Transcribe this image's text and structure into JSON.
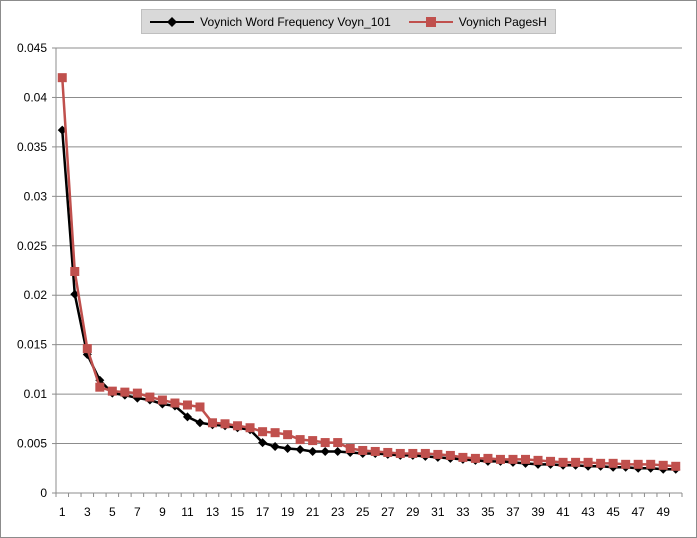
{
  "chart_data": {
    "type": "line",
    "x": [
      1,
      2,
      3,
      4,
      5,
      6,
      7,
      8,
      9,
      10,
      11,
      12,
      13,
      14,
      15,
      16,
      17,
      18,
      19,
      20,
      21,
      22,
      23,
      24,
      25,
      26,
      27,
      28,
      29,
      30,
      31,
      32,
      33,
      34,
      35,
      36,
      37,
      38,
      39,
      40,
      41,
      42,
      43,
      44,
      45,
      46,
      47,
      48,
      49,
      50
    ],
    "x_tick_labels": [
      "1",
      "3",
      "5",
      "7",
      "9",
      "11",
      "13",
      "15",
      "17",
      "19",
      "21",
      "23",
      "25",
      "27",
      "29",
      "31",
      "33",
      "35",
      "37",
      "39",
      "41",
      "43",
      "45",
      "47",
      "49"
    ],
    "y_tick_labels": [
      "0",
      "0.005",
      "0.01",
      "0.015",
      "0.02",
      "0.025",
      "0.03",
      "0.035",
      "0.04",
      "0.045"
    ],
    "ylim": [
      0,
      0.045
    ],
    "grid": "horizontal",
    "legend_position": "top",
    "series": [
      {
        "name": "Voynich Word Frequency Voyn_101",
        "color": "#000000",
        "marker": "diamond",
        "values": [
          0.0367,
          0.0201,
          0.014,
          0.0114,
          0.0101,
          0.0099,
          0.0096,
          0.0094,
          0.009,
          0.0088,
          0.0077,
          0.0071,
          0.0069,
          0.0068,
          0.0066,
          0.0064,
          0.0051,
          0.0047,
          0.0045,
          0.0044,
          0.0042,
          0.0042,
          0.0042,
          0.0041,
          0.004,
          0.004,
          0.0039,
          0.0038,
          0.0038,
          0.0037,
          0.0036,
          0.0035,
          0.0034,
          0.0033,
          0.0032,
          0.0032,
          0.0031,
          0.003,
          0.0029,
          0.0029,
          0.0028,
          0.0028,
          0.0027,
          0.0027,
          0.0026,
          0.0026,
          0.0025,
          0.0025,
          0.0024,
          0.0024
        ]
      },
      {
        "name": "Voynich PagesH",
        "color": "#c0504d",
        "marker": "square",
        "values": [
          0.042,
          0.0224,
          0.0146,
          0.0107,
          0.0103,
          0.0102,
          0.0101,
          0.0097,
          0.0094,
          0.0091,
          0.0089,
          0.0087,
          0.0071,
          0.007,
          0.0068,
          0.0066,
          0.0062,
          0.0061,
          0.0059,
          0.0054,
          0.0053,
          0.0051,
          0.0051,
          0.0045,
          0.0043,
          0.0042,
          0.0041,
          0.004,
          0.004,
          0.004,
          0.0039,
          0.0038,
          0.0036,
          0.0035,
          0.0035,
          0.0034,
          0.0034,
          0.0034,
          0.0033,
          0.0032,
          0.0031,
          0.0031,
          0.0031,
          0.003,
          0.003,
          0.0029,
          0.0029,
          0.0029,
          0.0028,
          0.0027
        ]
      }
    ]
  }
}
